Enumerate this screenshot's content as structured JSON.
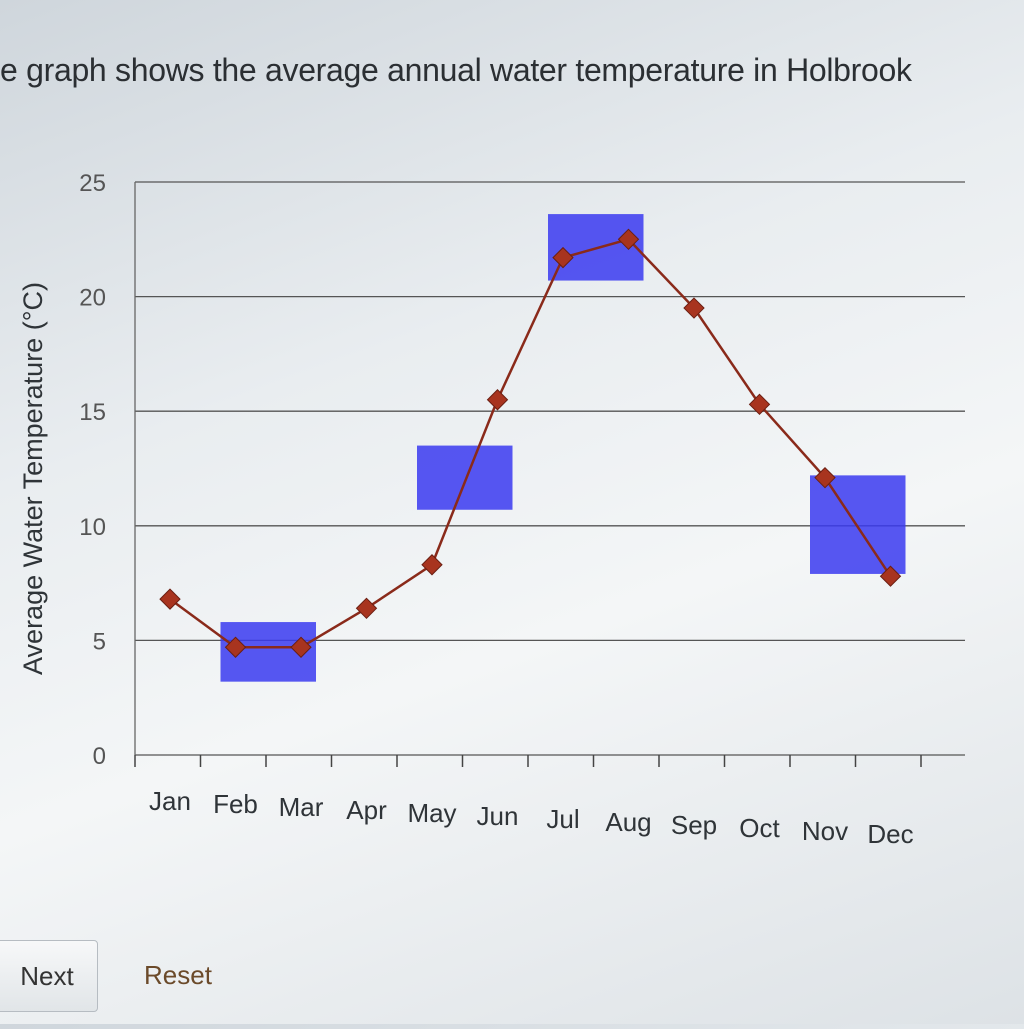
{
  "question": {
    "text": "e graph shows the average annual water temperature in Holbrook"
  },
  "chart_data": {
    "type": "line",
    "title": "",
    "xlabel": "",
    "ylabel": "Average Water Temperature (°C)",
    "ylim": [
      0,
      25
    ],
    "yticks": [
      0,
      5,
      10,
      15,
      20,
      25
    ],
    "grid": true,
    "categories": [
      "Jan",
      "Feb",
      "Mar",
      "Apr",
      "May",
      "Jun",
      "Jul",
      "Aug",
      "Sep",
      "Oct",
      "Nov",
      "Dec"
    ],
    "series": [
      {
        "values": [
          6.8,
          4.7,
          4.7,
          6.4,
          8.3,
          15.5,
          21.7,
          22.5,
          19.5,
          15.3,
          12.1,
          7.8
        ]
      }
    ],
    "colors": {
      "line": "#8a2a1a",
      "marker": "#a8341f",
      "highlight": "#3a3af0",
      "grid": "#555555",
      "text": "#2f3438"
    },
    "highlights": [
      {
        "from": "Feb",
        "to": "Mar",
        "ymin": 3.2,
        "ymax": 5.8
      },
      {
        "from": "May",
        "to": "Jun",
        "ymin": 10.7,
        "ymax": 13.5
      },
      {
        "from": "Jul",
        "to": "Aug",
        "ymin": 20.7,
        "ymax": 23.6
      },
      {
        "from": "Nov",
        "to": "Dec",
        "ymin": 7.9,
        "ymax": 12.2
      }
    ]
  },
  "buttons": {
    "next_label": "Next",
    "reset_label": "Reset"
  }
}
